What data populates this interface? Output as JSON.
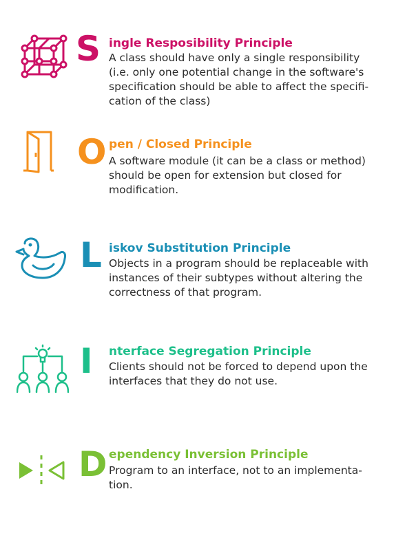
{
  "principles": [
    {
      "key": "single",
      "letter": "S",
      "title": "ingle Resposibility Principle",
      "color": "#cc1166",
      "icon": "cube-network-icon",
      "lines": [
        "A class should have only a single responsibility",
        "(i.e. only one potential change in the software's",
        "specification should be able to affect the specifi-",
        "cation of the class)"
      ]
    },
    {
      "key": "open",
      "letter": "O",
      "title": "pen / Closed Principle",
      "color": "#f5911e",
      "icon": "open-door-icon",
      "lines": [
        "A software module (it can be a class or method)",
        "should be open for extension but closed for",
        "modification."
      ]
    },
    {
      "key": "liskov",
      "letter": "L",
      "title": "iskov Substitution Principle",
      "color": "#1a8fb5",
      "icon": "rubber-duck-icon",
      "lines": [
        "Objects in a program should be replaceable with",
        "instances of their subtypes without altering the",
        "correctness of that program."
      ]
    },
    {
      "key": "interface",
      "letter": "I",
      "title": "nterface Segregation Principle",
      "color": "#1dbf8a",
      "icon": "team-idea-icon",
      "lines": [
        "Clients should not be forced to depend upon the",
        "interfaces that they do not use."
      ]
    },
    {
      "key": "dependency",
      "letter": "D",
      "title": "ependency Inversion Principle",
      "color": "#7ac035",
      "icon": "inversion-arrows-icon",
      "lines": [
        "Program to an interface, not to an implementa-",
        "tion."
      ]
    }
  ]
}
